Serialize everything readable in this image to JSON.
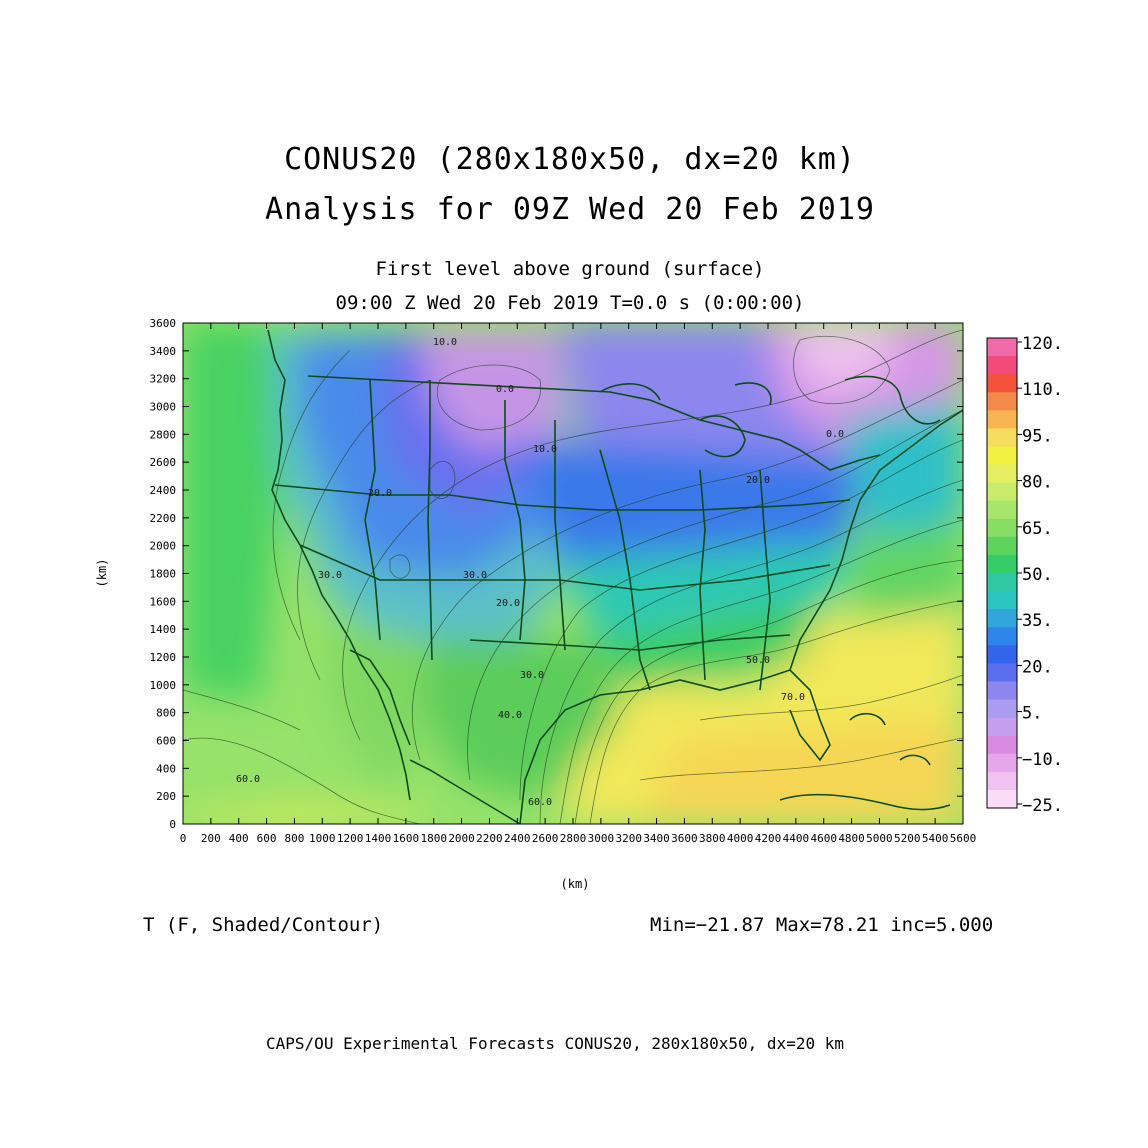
{
  "header": {
    "title_line1": "CONUS20 (280x180x50, dx=20 km)",
    "title_line2": "Analysis for 09Z Wed 20 Feb 2019",
    "level": "First level above ground (surface)",
    "valid_time": "09:00 Z Wed 20 Feb 2019     T=0.0 s (0:00:00)"
  },
  "axes": {
    "x_unit": "(km)",
    "y_unit": "(km)",
    "x_ticks": [
      "0",
      "200",
      "400",
      "600",
      "800",
      "1000",
      "1200",
      "1400",
      "1600",
      "1800",
      "2000",
      "2200",
      "2400",
      "2600",
      "2800",
      "3000",
      "3200",
      "3400",
      "3600",
      "3800",
      "4000",
      "4200",
      "4400",
      "4600",
      "4800",
      "5000",
      "5200",
      "5400",
      "5600"
    ],
    "y_ticks": [
      "0",
      "200",
      "400",
      "600",
      "800",
      "1000",
      "1200",
      "1400",
      "1600",
      "1800",
      "2000",
      "2200",
      "2400",
      "2600",
      "2800",
      "3000",
      "3200",
      "3400",
      "3600"
    ],
    "x_range_km": [
      0,
      5600
    ],
    "y_range_km": [
      0,
      3600
    ]
  },
  "colorbar": {
    "labels": [
      "120.",
      "110.",
      "95.",
      "80.",
      "65.",
      "50.",
      "35.",
      "20.",
      "5.",
      "−10.",
      "−25."
    ],
    "colors": [
      "#f06aa8",
      "#f24b7a",
      "#f4533a",
      "#f48a4a",
      "#f8b450",
      "#f4dc5c",
      "#f2f040",
      "#e4ee60",
      "#c8ec6a",
      "#a6e66a",
      "#86de62",
      "#5cd45e",
      "#36cc68",
      "#2ec8a2",
      "#2cc4c0",
      "#30a6dc",
      "#2e86ea",
      "#3264ec",
      "#5c6ef0",
      "#8c86ee",
      "#aa9cf0",
      "#c69ef0",
      "#d98ae0",
      "#e6a6ea",
      "#f0c2f0",
      "#f8dcf8"
    ]
  },
  "contour_labels": [
    {
      "text": "10.0"
    },
    {
      "text": "0.0"
    },
    {
      "text": "10.0"
    },
    {
      "text": "20.0"
    },
    {
      "text": "30.0"
    },
    {
      "text": "20.0"
    },
    {
      "text": "30.0"
    },
    {
      "text": "40.0"
    },
    {
      "text": "50.0"
    },
    {
      "text": "60.0"
    },
    {
      "text": "60.0"
    },
    {
      "text": "70.0"
    },
    {
      "text": "20.0"
    },
    {
      "text": "0.0"
    },
    {
      "text": "30.0"
    }
  ],
  "variable": "T (F, Shaded/Contour)",
  "stats": "Min=−21.87 Max=78.21 inc=5.000",
  "footer": "CAPS/OU Experimental Forecasts  CONUS20, 280x180x50, dx=20 km"
}
